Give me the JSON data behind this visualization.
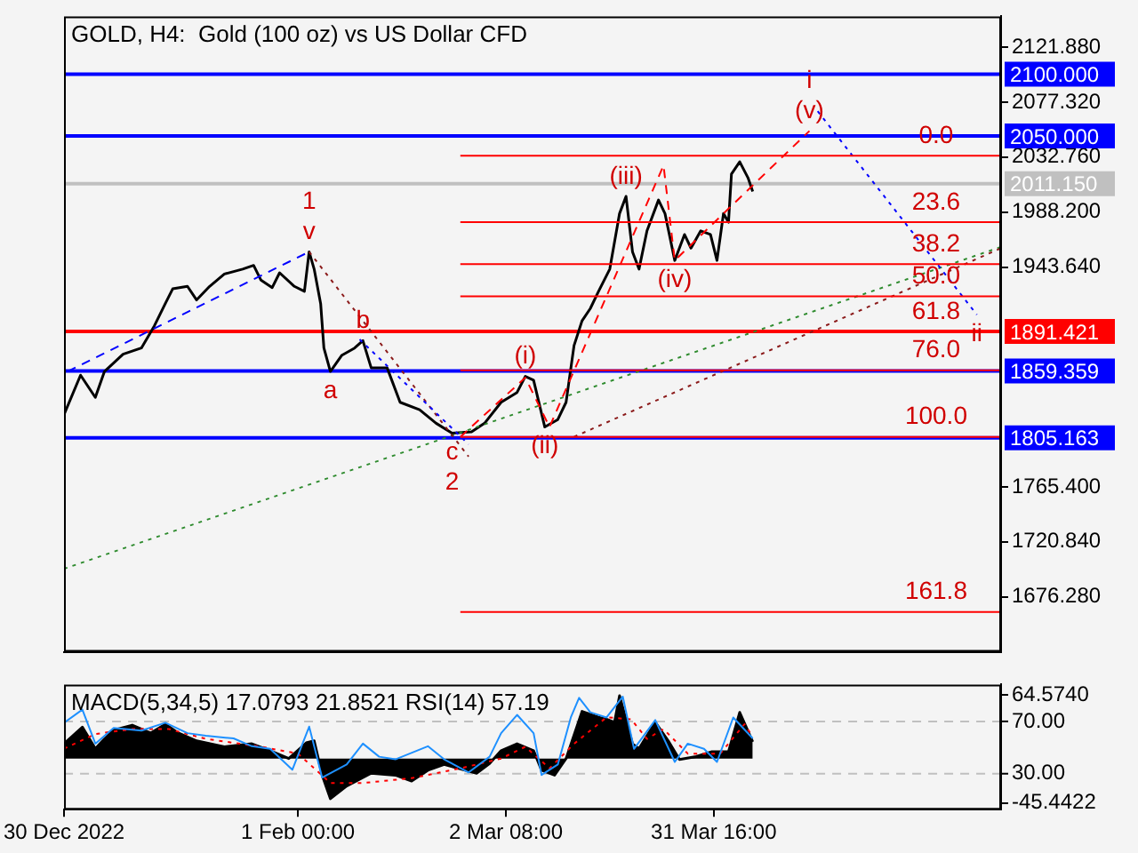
{
  "chart_data": [
    {
      "type": "line",
      "title": "GOLD, H4:  Gold (100 oz) vs US Dollar CFD",
      "xlim": [
        "2022-12-30T00:00",
        "2023-05-11T05:00"
      ],
      "ylim": [
        1631.7,
        2146.9
      ],
      "yticks": [
        {
          "value": 2121.88,
          "label": "2121.880"
        },
        {
          "value": 2077.32,
          "label": "2077.320"
        },
        {
          "value": 2032.76,
          "label": "2032.760"
        },
        {
          "value": 1988.2,
          "label": "1988.200"
        },
        {
          "value": 1943.64,
          "label": "1943.640"
        },
        {
          "value": 1765.4,
          "label": "1765.400"
        },
        {
          "value": 1720.84,
          "label": "1720.840"
        },
        {
          "value": 1676.28,
          "label": "1676.280"
        }
      ],
      "tick_labels": "y",
      "marker": "none",
      "legend": false,
      "series": [
        {
          "color": "#000000",
          "x": [
            "2022-12-30T00:00",
            "2023-01-01T08:00",
            "2023-01-03T10:00",
            "2023-01-04T17:00",
            "2023-01-07T08:00",
            "2023-01-09T22:00",
            "2023-01-11T18:00",
            "2023-01-13T07:00",
            "2023-01-14T08:00",
            "2023-01-16T10:00",
            "2023-01-17T17:00",
            "2023-01-19T13:00",
            "2023-01-21T15:00",
            "2023-01-24T05:00",
            "2023-01-25T18:00",
            "2023-01-26T19:00",
            "2023-01-28T09:00",
            "2023-01-29T10:00",
            "2023-01-31T12:00",
            "2023-02-01T22:00",
            "2023-02-02T14:00",
            "2023-02-03T07:00",
            "2023-02-04T05:00",
            "2023-02-04T16:00",
            "2023-02-05T14:00",
            "2023-02-07T04:00",
            "2023-02-09T00:00",
            "2023-02-10T04:00",
            "2023-02-11T08:00",
            "2023-02-13T14:00",
            "2023-02-15T10:00",
            "2023-02-18T04:00",
            "2023-02-20T12:00",
            "2023-02-22T18:00",
            "2023-02-25T12:00",
            "2023-02-27T08:00",
            "2023-03-01T16:00",
            "2023-03-03T22:00",
            "2023-03-05T02:00",
            "2023-03-06T06:00",
            "2023-03-07T20:00",
            "2023-03-09T16:00",
            "2023-03-10T20:00",
            "2023-03-11T23:00",
            "2023-03-13T02:00",
            "2023-03-14T06:00",
            "2023-03-15T10:00",
            "2023-03-17T00:00",
            "2023-03-18T09:00",
            "2023-03-19T07:00",
            "2023-03-20T05:00",
            "2023-03-21T03:00",
            "2023-03-22T06:00",
            "2023-03-23T21:00",
            "2023-03-24T19:00",
            "2023-03-26T04:00",
            "2023-03-27T13:00",
            "2023-03-28T11:00",
            "2023-03-29T20:00",
            "2023-03-31T05:00",
            "2023-04-01T03:00",
            "2023-04-02T01:00",
            "2023-04-02T18:00",
            "2023-04-03T04:00",
            "2023-04-04T08:00",
            "2023-04-05T12:00",
            "2023-04-06T04:00"
          ],
          "values": [
            1824,
            1856,
            1838,
            1859,
            1873,
            1878,
            1896,
            1914,
            1926,
            1928,
            1917,
            1928,
            1938,
            1942,
            1945,
            1933,
            1927,
            1939,
            1928,
            1924,
            1956,
            1942,
            1914,
            1878,
            1859,
            1872,
            1878,
            1884,
            1862,
            1862,
            1834,
            1828,
            1817,
            1809,
            1810,
            1817,
            1834,
            1842,
            1855,
            1852,
            1814,
            1820,
            1834,
            1880,
            1900,
            1910,
            1924,
            1942,
            1987,
            2001,
            1956,
            1942,
            1973,
            1998,
            1987,
            1949,
            1970,
            1959,
            1973,
            1970,
            1949,
            1987,
            1980,
            2019,
            2029,
            2016,
            2005
          ]
        },
        {
          "color": "#2e8b2e",
          "line_style": "dotted",
          "x": [
            "2022-12-30T00:00",
            "2023-05-11T05:00"
          ],
          "values": [
            1699,
            1960
          ]
        },
        {
          "color": "#8b1a1a",
          "line_style": "dotted",
          "x": [
            "2023-03-11T23:00",
            "2023-05-11T05:00"
          ],
          "values": [
            1806,
            1959
          ]
        },
        {
          "color": "#ff0000",
          "line_style": "dashed",
          "x": [
            "2023-02-23T22:00",
            "2023-03-05T02:00",
            "2023-03-08T12:00",
            "2023-03-24T14:00",
            "2023-03-26T04:00",
            "2023-04-14T04:00"
          ],
          "values": [
            1806,
            1854,
            1814,
            2026,
            1949,
            2054
          ]
        },
        {
          "color": "#0000ff",
          "line_style": "dotted",
          "x": [
            "2023-04-15T08:00",
            "2023-05-07T19:00"
          ],
          "values": [
            2070,
            1905
          ]
        },
        {
          "color": "#8b1a1a",
          "line_style": "dotted",
          "x": [
            "2023-02-02T14:00",
            "2023-02-25T02:00"
          ],
          "values": [
            1956,
            1790
          ]
        },
        {
          "color": "#0000ff",
          "line_style": "dashed",
          "x": [
            "2022-12-30T12:00",
            "2023-02-02T14:00"
          ],
          "values": [
            1859,
            1956
          ]
        },
        {
          "color": "#0000ff",
          "line_style": "dotted",
          "x": [
            "2023-02-09T17:00",
            "2023-02-25T02:00"
          ],
          "values": [
            1885,
            1800
          ]
        },
        {
          "color": "#ff0000",
          "x": [
            "2023-02-23T22:00",
            "2023-05-11T05:00"
          ],
          "values": [
            2034,
            2034
          ]
        },
        {
          "color": "#ff0000",
          "x": [
            "2023-02-23T22:00",
            "2023-05-11T05:00"
          ],
          "values": [
            1980,
            1980
          ]
        },
        {
          "color": "#ff0000",
          "x": [
            "2023-02-23T22:00",
            "2023-05-11T05:00"
          ],
          "values": [
            1946,
            1946
          ]
        },
        {
          "color": "#ff0000",
          "x": [
            "2023-02-23T22:00",
            "2023-05-11T05:00"
          ],
          "values": [
            1920,
            1920
          ]
        },
        {
          "color": "#ff0000",
          "x": [
            "2023-02-23T22:00",
            "2023-05-11T05:00"
          ],
          "values": [
            1860,
            1860
          ]
        },
        {
          "color": "#ff0000",
          "x": [
            "2023-02-23T22:00",
            "2023-05-11T05:00"
          ],
          "values": [
            1806,
            1806
          ]
        },
        {
          "color": "#ff0000",
          "x": [
            "2023-02-23T22:00",
            "2023-05-11T05:00"
          ],
          "values": [
            1664,
            1664
          ]
        }
      ],
      "ref_lines": [
        {
          "axis": "y",
          "value": 2100,
          "label": "2100.000",
          "color": "#0000ff"
        },
        {
          "axis": "y",
          "value": 2050,
          "label": "2050.000",
          "color": "#0000ff"
        },
        {
          "axis": "y",
          "value": 2011.15,
          "label": "2011.150",
          "color": "#c0c0c0"
        },
        {
          "axis": "y",
          "value": 1891.421,
          "label": "1891.421",
          "color": "#ff0000"
        },
        {
          "axis": "y",
          "value": 1859.359,
          "label": "1859.359",
          "color": "#0000ff"
        },
        {
          "axis": "y",
          "value": 1805.163,
          "label": "1805.163",
          "color": "#0000ff"
        }
      ],
      "annotations": [
        {
          "text": "v",
          "x": "2023-02-02T14:00",
          "y": 1956
        },
        {
          "text": "1",
          "x": "2023-02-02T14:00",
          "y": 1956
        },
        {
          "text": "a",
          "x": "2023-02-05T14:00",
          "y": 1859
        },
        {
          "text": "b",
          "x": "2023-02-10T04:00",
          "y": 1884
        },
        {
          "text": "c",
          "x": "2023-02-22T18:00",
          "y": 1809
        },
        {
          "text": "2",
          "x": "2023-02-22T18:00",
          "y": 1809
        },
        {
          "text": "(i)",
          "x": "2023-03-05T02:00",
          "y": 1855
        },
        {
          "text": "(ii)",
          "x": "2023-03-07T20:00",
          "y": 1814
        },
        {
          "text": "(iii)",
          "x": "2023-03-19T07:00",
          "y": 2001
        },
        {
          "text": "(iv)",
          "x": "2023-03-26T04:00",
          "y": 1949
        },
        {
          "text": "(v)",
          "x": "2023-04-14T04:00",
          "y": 2054
        },
        {
          "text": "i",
          "x": "2023-04-14T04:00",
          "y": 2054
        },
        {
          "text": "ii",
          "x": "2023-05-07T19:00",
          "y": 1905
        },
        {
          "text": "0.0",
          "x": "2023-05-02T01:00",
          "y": 2034
        },
        {
          "text": "23.6",
          "x": "2023-05-02T01:00",
          "y": 1980
        },
        {
          "text": "38.2",
          "x": "2023-05-02T01:00",
          "y": 1946
        },
        {
          "text": "50.0",
          "x": "2023-05-02T01:00",
          "y": 1920
        },
        {
          "text": "61.8",
          "x": "2023-05-02T01:00",
          "y": 1891.421
        },
        {
          "text": "76.0",
          "x": "2023-05-02T01:00",
          "y": 1860
        },
        {
          "text": "100.0",
          "x": "2023-05-02T01:00",
          "y": 1806
        },
        {
          "text": "161.8",
          "x": "2023-05-02T01:00",
          "y": 1664
        }
      ]
    },
    {
      "type": "line",
      "title": "MACD(5,34,5) 17.0793 21.8521 RSI(14) 57.19",
      "xlim": [
        "2022-12-30T00:00",
        "2023-05-11T05:00"
      ],
      "xticks": [
        {
          "value": "2022-12-30T00:00",
          "label": "30 Dec 2022"
        },
        {
          "value": "2023-02-01T00:00",
          "label": "1 Feb 00:00"
        },
        {
          "value": "2023-03-02T08:00",
          "label": "2 Mar 08:00"
        },
        {
          "value": "2023-03-31T16:00",
          "label": "31 Mar 16:00"
        }
      ],
      "ylim": [
        -52.1,
        75.4
      ],
      "yticks": [
        {
          "value": 64.574,
          "label": "64.5740"
        },
        {
          "value": -45.4422,
          "label": "-45.4422"
        }
      ],
      "y2lim": [
        2.5,
        98.2
      ],
      "y2ticks": [
        {
          "value": 70,
          "label": "70.00"
        },
        {
          "value": 30,
          "label": "30.00"
        }
      ],
      "marker": "none",
      "legend": false,
      "series": [
        {
          "type": "area",
          "color": "#000000",
          "x": [
            "2022-12-30T00:00",
            "2023-01-01T14:00",
            "2023-01-03T10:00",
            "2023-01-04T17:00",
            "2023-01-06T00:00",
            "2023-01-08T15:00",
            "2023-01-11T05:00",
            "2023-01-13T07:00",
            "2023-01-15T03:00",
            "2023-01-17T17:00",
            "2023-01-21T15:00",
            "2023-01-25T12:00",
            "2023-01-28T02:00",
            "2023-01-30T17:00",
            "2023-02-02T04:00",
            "2023-02-03T07:00",
            "2023-02-04T10:00",
            "2023-02-05T14:00",
            "2023-02-07T21:00",
            "2023-02-11T08:00",
            "2023-02-14T18:00",
            "2023-02-17T01:00",
            "2023-02-19T08:00",
            "2023-02-21T15:00",
            "2023-02-26T05:00",
            "2023-02-28T01:00",
            "2023-03-01T16:00",
            "2023-03-03T22:00",
            "2023-03-06T06:00",
            "2023-03-07T09:00",
            "2023-03-09T05:00",
            "2023-03-10T20:00",
            "2023-03-13T02:00",
            "2023-03-15T10:00",
            "2023-03-16T13:00",
            "2023-03-17T16:00",
            "2023-03-18T09:00",
            "2023-03-20T05:00",
            "2023-03-21T03:00",
            "2023-03-23T10:00",
            "2023-03-25T06:00",
            "2023-03-26T20:00",
            "2023-03-29T04:00",
            "2023-03-31T10:00",
            "2023-04-02T18:00",
            "2023-04-04T08:00",
            "2023-04-06T04:00"
          ],
          "values": [
            15,
            32,
            10,
            20,
            29,
            34,
            26,
            35,
            26,
            18,
            12,
            15,
            8,
            0,
            16,
            18,
            -17,
            -41,
            -28,
            -15,
            -17,
            -23,
            -12,
            -6,
            -15,
            -5,
            8,
            15,
            8,
            -12,
            -17,
            0,
            48,
            42,
            40,
            37,
            64,
            15,
            10,
            37,
            18,
            -1,
            2,
            7,
            7,
            47,
            17
          ]
        },
        {
          "type": "line",
          "color": "#ff0000",
          "line_style": "dotted",
          "x": [
            "2022-12-30T00:00",
            "2023-01-03T10:00",
            "2023-01-08T15:00",
            "2023-01-13T19:00",
            "2023-01-19T00:00",
            "2023-01-26T19:00",
            "2023-02-01T00:00",
            "2023-02-05T14:00",
            "2023-02-10T04:00",
            "2023-02-17T01:00",
            "2023-02-23T22:00",
            "2023-03-01T16:00",
            "2023-03-05T02:00",
            "2023-03-08T12:00",
            "2023-03-11T23:00",
            "2023-03-16T13:00",
            "2023-03-20T00:00",
            "2023-03-22T06:00",
            "2023-03-24T14:00",
            "2023-03-28T00:00",
            "2023-04-01T14:00",
            "2023-04-05T00:00",
            "2023-04-06T04:00"
          ],
          "values": [
            10,
            25,
            30,
            30,
            20,
            12,
            5,
            -25,
            -25,
            -20,
            -10,
            0,
            12,
            -10,
            15,
            42,
            40,
            20,
            30,
            5,
            5,
            35,
            22
          ]
        },
        {
          "type": "line",
          "color": "#1e90ff",
          "axis": "y2",
          "x": [
            "2022-12-30T00:00",
            "2023-01-01T14:00",
            "2023-01-03T10:00",
            "2023-01-06T00:00",
            "2023-01-09T22:00",
            "2023-01-13T07:00",
            "2023-01-16T10:00",
            "2023-01-19T00:00",
            "2023-01-22T22:00",
            "2023-01-25T12:00",
            "2023-01-28T02:00",
            "2023-01-31T05:00",
            "2023-02-02T14:00",
            "2023-02-04T10:00",
            "2023-02-07T21:00",
            "2023-02-10T04:00",
            "2023-02-12T11:00",
            "2023-02-14T18:00",
            "2023-02-19T08:00",
            "2023-02-21T15:00",
            "2023-02-25T02:00",
            "2023-02-28T01:00",
            "2023-03-01T16:00",
            "2023-03-03T22:00",
            "2023-03-06T06:00",
            "2023-03-07T09:00",
            "2023-03-09T16:00",
            "2023-03-11T12:00",
            "2023-03-12T16:00",
            "2023-03-14T06:00",
            "2023-03-16T13:00",
            "2023-03-18T20:00",
            "2023-03-20T10:00",
            "2023-03-23T10:00",
            "2023-03-26T04:00",
            "2023-03-28T00:00",
            "2023-03-30T07:00",
            "2023-04-01T03:00",
            "2023-04-03T10:00",
            "2023-04-06T04:00"
          ],
          "values": [
            69,
            79,
            53,
            65,
            63,
            69,
            61,
            59,
            57,
            51,
            49,
            33,
            66,
            27,
            37,
            53,
            43,
            41,
            51,
            41,
            31,
            43,
            61,
            75,
            61,
            29,
            37,
            73,
            88,
            77,
            73,
            89,
            49,
            71,
            39,
            53,
            49,
            39,
            73,
            57
          ]
        }
      ],
      "ref_lines": [
        {
          "axis": "y2",
          "value": 70,
          "color": "#c0c0c0",
          "line_style": "dashed"
        },
        {
          "axis": "y2",
          "value": 30,
          "color": "#c0c0c0",
          "line_style": "dashed"
        }
      ]
    }
  ]
}
